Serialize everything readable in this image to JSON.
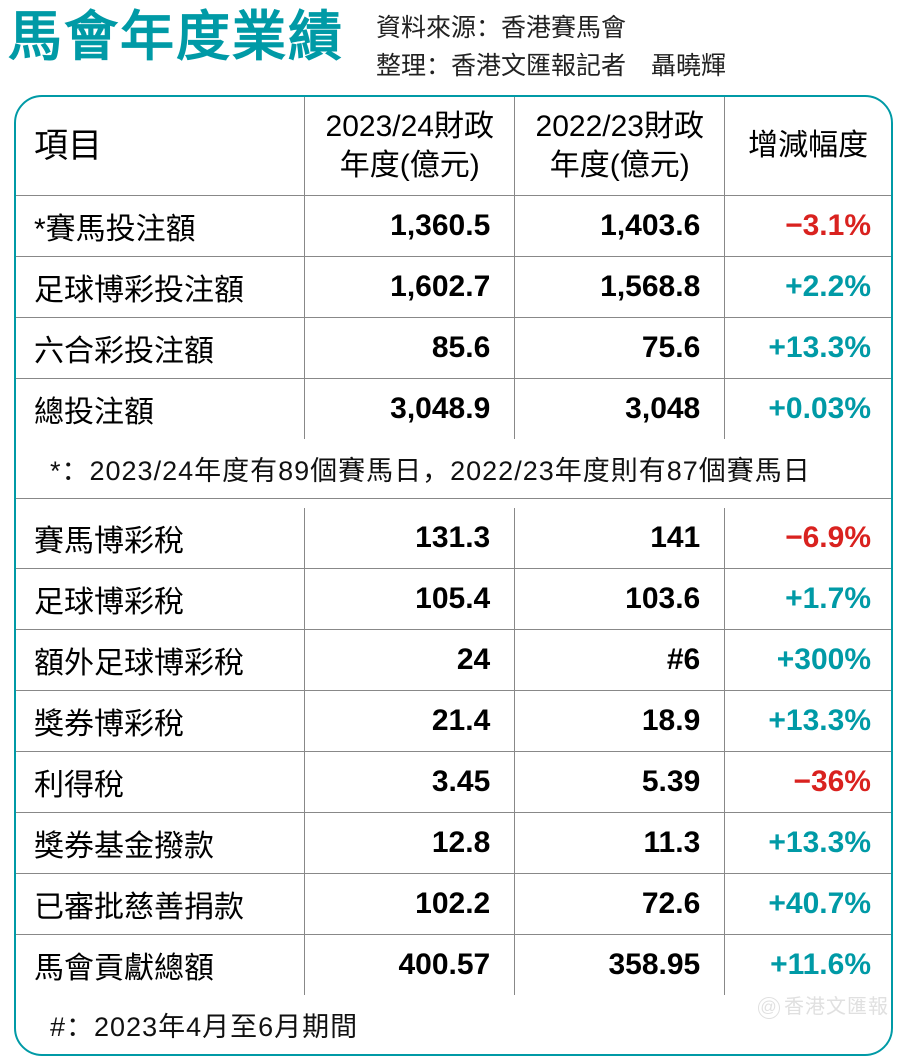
{
  "title": "馬會年度業績",
  "source_line": "資料來源：香港賽馬會",
  "editor_line": "整理：香港文匯報記者　聶曉輝",
  "columns": {
    "item": "項目",
    "fy24": "2023/24財政年度(億元)",
    "fy23": "2022/23財政年度(億元)",
    "change": "增減幅度"
  },
  "rows_top": [
    {
      "item": "*賽馬投注額",
      "fy24": "1,360.5",
      "fy23": "1,403.6",
      "change": "−3.1%",
      "dir": "neg"
    },
    {
      "item": "足球博彩投注額",
      "fy24": "1,602.7",
      "fy23": "1,568.8",
      "change": "+2.2%",
      "dir": "pos"
    },
    {
      "item": "六合彩投注額",
      "fy24": "85.6",
      "fy23": "75.6",
      "change": "+13.3%",
      "dir": "pos"
    },
    {
      "item": "總投注額",
      "fy24": "3,048.9",
      "fy23": "3,048",
      "change": "+0.03%",
      "dir": "pos"
    }
  ],
  "note_top": "*：2023/24年度有89個賽馬日，2022/23年度則有87個賽馬日",
  "rows_bottom": [
    {
      "item": "賽馬博彩稅",
      "fy24": "131.3",
      "fy23": "141",
      "change": "−6.9%",
      "dir": "neg"
    },
    {
      "item": "足球博彩稅",
      "fy24": "105.4",
      "fy23": "103.6",
      "change": "+1.7%",
      "dir": "pos"
    },
    {
      "item": "額外足球博彩稅",
      "fy24": "24",
      "fy23": "#6",
      "change": "+300%",
      "dir": "pos"
    },
    {
      "item": "獎券博彩稅",
      "fy24": "21.4",
      "fy23": "18.9",
      "change": "+13.3%",
      "dir": "pos"
    },
    {
      "item": "利得稅",
      "fy24": "3.45",
      "fy23": "5.39",
      "change": "−36%",
      "dir": "neg"
    },
    {
      "item": "獎券基金撥款",
      "fy24": "12.8",
      "fy23": "11.3",
      "change": "+13.3%",
      "dir": "pos"
    },
    {
      "item": "已審批慈善捐款",
      "fy24": "102.2",
      "fy23": "72.6",
      "change": "+40.7%",
      "dir": "pos"
    },
    {
      "item": "馬會貢獻總額",
      "fy24": "400.57",
      "fy23": "358.95",
      "change": "+11.6%",
      "dir": "pos"
    }
  ],
  "note_bottom": "#：2023年4月至6月期間",
  "watermark": "@香港文匯報",
  "colors": {
    "accent": "#009aa6",
    "negative": "#d9221f",
    "text": "#111111",
    "border": "#888888",
    "background": "#ffffff",
    "watermark": "#e0e0e0"
  },
  "typography": {
    "title_fontsize": 54,
    "header_fontsize": 30,
    "cell_fontsize": 30,
    "note_fontsize": 27
  },
  "table": {
    "border_radius": 28,
    "outer_border_width": 2.5,
    "col_widths_pct": [
      33,
      24,
      24,
      19
    ]
  }
}
